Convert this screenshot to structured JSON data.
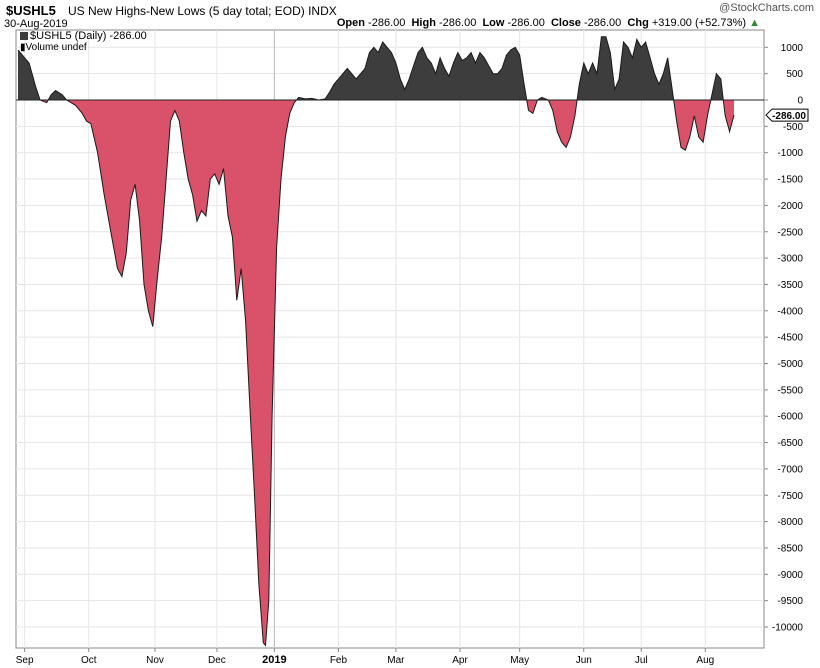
{
  "header": {
    "symbol": "$USHL5",
    "description": "US New Highs-New Lows (5 day total; EOD)",
    "exchange": "INDX",
    "date": "30-Aug-2019",
    "watermark": "@StockCharts.com",
    "open_label": "Open",
    "open_value": "-286.00",
    "high_label": "High",
    "high_value": "-286.00",
    "low_label": "Low",
    "low_value": "-286.00",
    "close_label": "Close",
    "close_value": "-286.00",
    "chg_label": "Chg",
    "chg_value": "+319.00 (+52.73%)",
    "chg_arrow": "▲"
  },
  "legend": {
    "series_label": "$USHL5 (Daily) -286.00",
    "volume_label": "Volume undef"
  },
  "last_value_label": "-286.00",
  "colors": {
    "positive_fill": "#3d3d3d",
    "negative_fill": "#d9526a",
    "grid": "#e6e6e6",
    "axis": "#888888",
    "up_arrow": "#2e8b2e"
  },
  "chart_data": {
    "type": "area",
    "title": "$USHL5 US New Highs-New Lows (5 day total; EOD)",
    "xlabel": "",
    "ylabel": "",
    "ylim": [
      -10300,
      1200
    ],
    "y_ticks": [
      1000,
      500,
      0,
      -500,
      -1000,
      -1500,
      -2000,
      -2500,
      -3000,
      -3500,
      -4000,
      -4500,
      -5000,
      -5500,
      -6000,
      -6500,
      -7000,
      -7500,
      -8000,
      -8500,
      -9000,
      -9500,
      -10000
    ],
    "x_ticks": [
      {
        "label": "Sep",
        "x": 0.3,
        "year": false
      },
      {
        "label": "Oct",
        "x": 3.2,
        "year": false
      },
      {
        "label": "Nov",
        "x": 6.2,
        "year": false
      },
      {
        "label": "Dec",
        "x": 9.0,
        "year": false
      },
      {
        "label": "2019",
        "x": 11.6,
        "year": true
      },
      {
        "label": "Feb",
        "x": 14.5,
        "year": false
      },
      {
        "label": "Mar",
        "x": 17.1,
        "year": false
      },
      {
        "label": "Apr",
        "x": 20.0,
        "year": false
      },
      {
        "label": "May",
        "x": 22.7,
        "year": false
      },
      {
        "label": "Jun",
        "x": 25.6,
        "year": false
      },
      {
        "label": "Jul",
        "x": 28.2,
        "year": false
      },
      {
        "label": "Aug",
        "x": 31.1,
        "year": false
      }
    ],
    "year_line_x": 11.6,
    "xlim": [
      0,
      33.7
    ],
    "series": [
      {
        "name": "$USHL5",
        "points": [
          [
            0,
            950
          ],
          [
            0.5,
            700
          ],
          [
            0.8,
            250
          ],
          [
            1.0,
            0
          ],
          [
            1.3,
            -50
          ],
          [
            1.5,
            100
          ],
          [
            1.7,
            180
          ],
          [
            2.0,
            100
          ],
          [
            2.2,
            0
          ],
          [
            2.6,
            -100
          ],
          [
            2.9,
            -250
          ],
          [
            3.1,
            -400
          ],
          [
            3.3,
            -450
          ],
          [
            3.6,
            -1000
          ],
          [
            3.9,
            -1800
          ],
          [
            4.2,
            -2500
          ],
          [
            4.5,
            -3200
          ],
          [
            4.7,
            -3350
          ],
          [
            4.9,
            -2900
          ],
          [
            5.1,
            -1900
          ],
          [
            5.3,
            -1600
          ],
          [
            5.5,
            -2300
          ],
          [
            5.7,
            -3500
          ],
          [
            5.9,
            -4000
          ],
          [
            6.1,
            -4300
          ],
          [
            6.3,
            -3400
          ],
          [
            6.5,
            -2600
          ],
          [
            6.7,
            -1500
          ],
          [
            6.9,
            -400
          ],
          [
            7.1,
            -200
          ],
          [
            7.3,
            -400
          ],
          [
            7.5,
            -1000
          ],
          [
            7.7,
            -1500
          ],
          [
            7.9,
            -1800
          ],
          [
            8.1,
            -2300
          ],
          [
            8.3,
            -2100
          ],
          [
            8.5,
            -2200
          ],
          [
            8.7,
            -1500
          ],
          [
            8.9,
            -1400
          ],
          [
            9.1,
            -1600
          ],
          [
            9.3,
            -1300
          ],
          [
            9.5,
            -2200
          ],
          [
            9.7,
            -2600
          ],
          [
            9.9,
            -3800
          ],
          [
            10.1,
            -3200
          ],
          [
            10.3,
            -4200
          ],
          [
            10.5,
            -5900
          ],
          [
            10.7,
            -7500
          ],
          [
            10.9,
            -9200
          ],
          [
            11.1,
            -10300
          ],
          [
            11.2,
            -10350
          ],
          [
            11.35,
            -9500
          ],
          [
            11.5,
            -6000
          ],
          [
            11.7,
            -2800
          ],
          [
            11.9,
            -1500
          ],
          [
            12.1,
            -700
          ],
          [
            12.3,
            -250
          ],
          [
            12.5,
            -50
          ],
          [
            12.7,
            50
          ],
          [
            13.0,
            20
          ],
          [
            13.3,
            30
          ],
          [
            13.6,
            0
          ],
          [
            13.9,
            20
          ],
          [
            14.1,
            150
          ],
          [
            14.3,
            300
          ],
          [
            14.5,
            400
          ],
          [
            14.7,
            500
          ],
          [
            14.9,
            600
          ],
          [
            15.1,
            500
          ],
          [
            15.3,
            400
          ],
          [
            15.5,
            500
          ],
          [
            15.7,
            600
          ],
          [
            15.9,
            900
          ],
          [
            16.1,
            1000
          ],
          [
            16.3,
            900
          ],
          [
            16.5,
            1100
          ],
          [
            16.7,
            1000
          ],
          [
            16.9,
            900
          ],
          [
            17.1,
            700
          ],
          [
            17.3,
            400
          ],
          [
            17.5,
            200
          ],
          [
            17.7,
            400
          ],
          [
            17.9,
            650
          ],
          [
            18.1,
            900
          ],
          [
            18.3,
            1000
          ],
          [
            18.5,
            800
          ],
          [
            18.7,
            700
          ],
          [
            18.9,
            500
          ],
          [
            19.1,
            800
          ],
          [
            19.3,
            600
          ],
          [
            19.5,
            450
          ],
          [
            19.7,
            700
          ],
          [
            19.9,
            900
          ],
          [
            20.1,
            750
          ],
          [
            20.3,
            800
          ],
          [
            20.5,
            900
          ],
          [
            20.7,
            700
          ],
          [
            20.9,
            900
          ],
          [
            21.1,
            800
          ],
          [
            21.3,
            650
          ],
          [
            21.5,
            500
          ],
          [
            21.7,
            500
          ],
          [
            21.9,
            600
          ],
          [
            22.1,
            850
          ],
          [
            22.3,
            950
          ],
          [
            22.5,
            1000
          ],
          [
            22.7,
            850
          ],
          [
            22.9,
            300
          ],
          [
            23.1,
            -200
          ],
          [
            23.3,
            -250
          ],
          [
            23.5,
            0
          ],
          [
            23.7,
            50
          ],
          [
            24.0,
            0
          ],
          [
            24.2,
            -200
          ],
          [
            24.4,
            -600
          ],
          [
            24.6,
            -800
          ],
          [
            24.8,
            -900
          ],
          [
            25.0,
            -700
          ],
          [
            25.2,
            -300
          ],
          [
            25.4,
            300
          ],
          [
            25.6,
            700
          ],
          [
            25.8,
            500
          ],
          [
            26.0,
            700
          ],
          [
            26.2,
            500
          ],
          [
            26.4,
            1200
          ],
          [
            26.6,
            1200
          ],
          [
            26.8,
            900
          ],
          [
            27.0,
            200
          ],
          [
            27.2,
            400
          ],
          [
            27.4,
            1100
          ],
          [
            27.6,
            1000
          ],
          [
            27.8,
            800
          ],
          [
            28.0,
            1150
          ],
          [
            28.2,
            1000
          ],
          [
            28.4,
            1100
          ],
          [
            28.6,
            800
          ],
          [
            28.8,
            500
          ],
          [
            29.0,
            300
          ],
          [
            29.2,
            500
          ],
          [
            29.4,
            800
          ],
          [
            29.6,
            200
          ],
          [
            29.8,
            -400
          ],
          [
            30.0,
            -900
          ],
          [
            30.2,
            -950
          ],
          [
            30.4,
            -700
          ],
          [
            30.6,
            -300
          ],
          [
            30.8,
            -700
          ],
          [
            31.0,
            -800
          ],
          [
            31.2,
            -300
          ],
          [
            31.4,
            100
          ],
          [
            31.6,
            500
          ],
          [
            31.8,
            400
          ],
          [
            32.0,
            -300
          ],
          [
            32.2,
            -600
          ],
          [
            32.4,
            -286
          ]
        ]
      }
    ]
  }
}
